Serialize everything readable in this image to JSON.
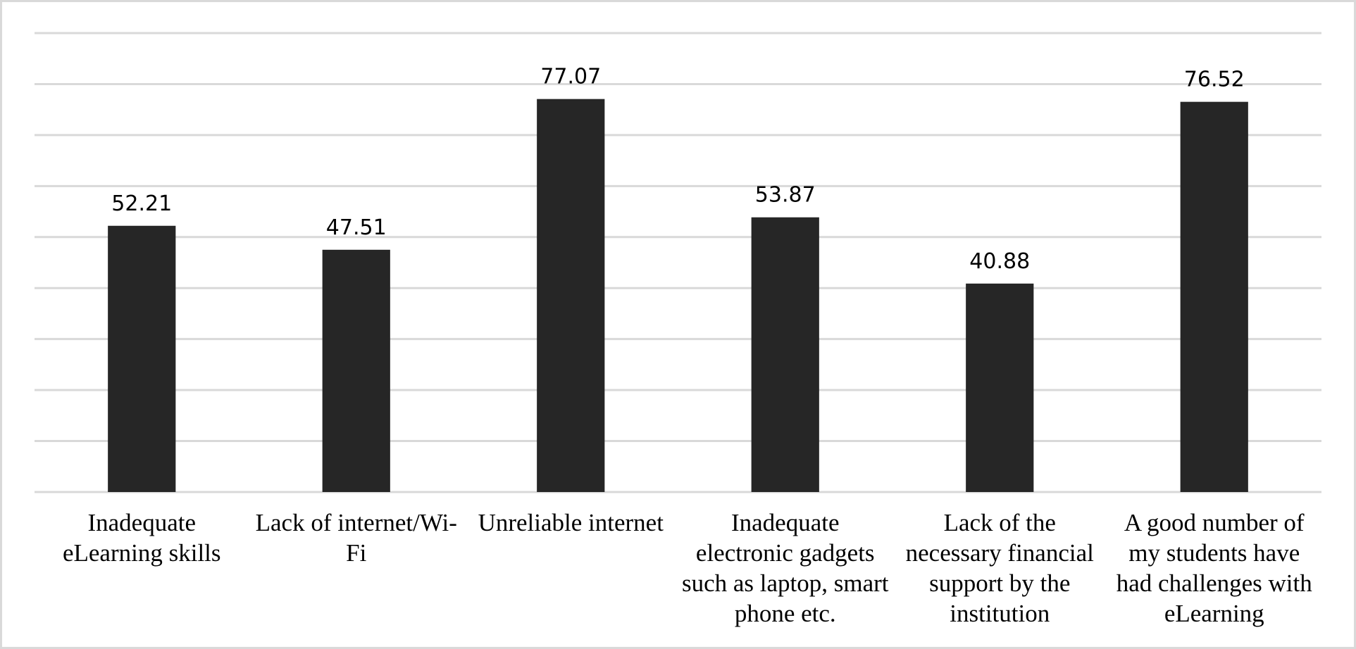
{
  "chart_data": {
    "type": "bar",
    "categories": [
      "Inadequate eLearning skills",
      "Lack of internet/Wi-Fi",
      "Unreliable internet",
      "Inadequate electronic gadgets such as laptop, smart phone etc.",
      "Lack of the necessary financial support by the institution",
      "A good number of my students have had challenges with eLearning"
    ],
    "values": [
      52.21,
      47.51,
      77.07,
      53.87,
      40.88,
      76.52
    ],
    "color": "#262626",
    "ylim": [
      0,
      90
    ],
    "yticks": [
      0,
      10,
      20,
      30,
      40,
      50,
      60,
      70,
      80,
      90
    ],
    "grid": true
  }
}
